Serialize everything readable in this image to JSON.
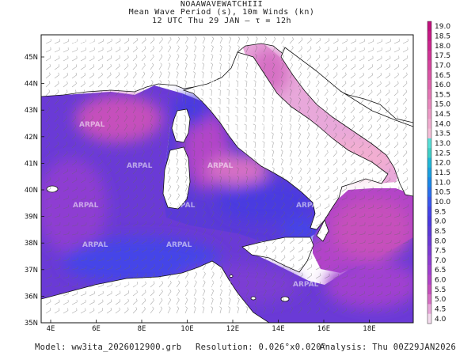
{
  "header": {
    "line1": "NOAAWAVEWATCHIII",
    "line2": "Mean Wave Period (s), 10m Winds (kn)",
    "line3": "12 UTC Thu 29 JAN  –  τ = 12h"
  },
  "axes": {
    "lat_labels": [
      "45N",
      "44N",
      "43N",
      "42N",
      "41N",
      "40N",
      "39N",
      "38N",
      "37N",
      "36N",
      "35N"
    ],
    "lon_labels": [
      "4E",
      "6E",
      "8E",
      "10E",
      "12E",
      "14E",
      "16E",
      "18E"
    ]
  },
  "colorbar": {
    "labels": [
      "19.0",
      "18.5",
      "18.0",
      "17.5",
      "17.0",
      "16.5",
      "16.0",
      "15.5",
      "15.0",
      "14.5",
      "14.0",
      "13.5",
      "13.0",
      "12.5",
      "12.0",
      "11.5",
      "11.0",
      "10.5",
      "10.0",
      "9.5",
      "9.0",
      "8.5",
      "8.0",
      "7.5",
      "7.0",
      "6.5",
      "6.0",
      "5.5",
      "5.0",
      "4.5",
      "4.0"
    ],
    "colors": [
      "#c2107e",
      "#c71a86",
      "#cc268e",
      "#d13496",
      "#d6449e",
      "#db55a6",
      "#e066ae",
      "#e578b6",
      "#ea8abf",
      "#ee9cc8",
      "#f2aed1",
      "#f5c0d9",
      "#58e0d8",
      "#3fd0c8",
      "#20b8d8",
      "#1aa0e0",
      "#1a88e8",
      "#2a70ee",
      "#3a58ee",
      "#4444e8",
      "#4a3ae0",
      "#5a3ad8",
      "#6a3ad6",
      "#7c3cd4",
      "#8e3ed2",
      "#a040d0",
      "#b244c8",
      "#c650bc",
      "#d670c4",
      "#e8a8da",
      "#f4dcee"
    ]
  },
  "watermark": "ARPAL",
  "footer": {
    "model": "Model: ww3ita_2026012900.grb",
    "resolution": "Resolution: 0.026°x0.020°",
    "analysis": "Analysis: Thu 00Z29JAN2026"
  }
}
